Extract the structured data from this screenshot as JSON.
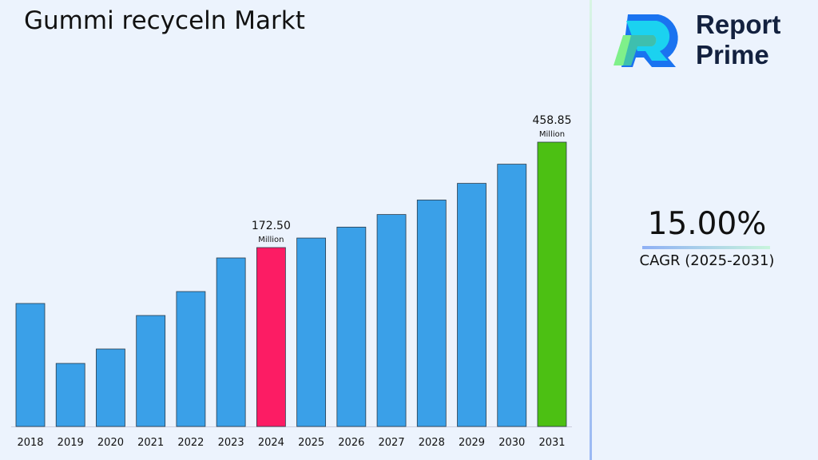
{
  "title": "Gummi recyceln Markt",
  "logo": {
    "line1": "Report",
    "line2": "Prime"
  },
  "cagr": {
    "value": "15.00%",
    "label": "CAGR (2025-2031)"
  },
  "colors": {
    "bar": "#3aa0e8",
    "highlight_2024": "#fc1c64",
    "highlight_2031": "#4cc013"
  },
  "chart_data": {
    "type": "bar",
    "categories": [
      "2018",
      "2019",
      "2020",
      "2021",
      "2022",
      "2023",
      "2024",
      "2025",
      "2026",
      "2027",
      "2028",
      "2029",
      "2030",
      "2031"
    ],
    "values": [
      118.6,
      60.8,
      74.7,
      107.0,
      130.1,
      162.5,
      172.5,
      198.4,
      228.1,
      262.3,
      301.7,
      346.9,
      399.0,
      458.85
    ],
    "annotations": [
      {
        "category": "2024",
        "value": "172.50",
        "unit": "Million"
      },
      {
        "category": "2031",
        "value": "458.85",
        "unit": "Million"
      }
    ],
    "title": "",
    "xlabel": "",
    "ylabel": "",
    "grid": false,
    "legend": "none"
  }
}
